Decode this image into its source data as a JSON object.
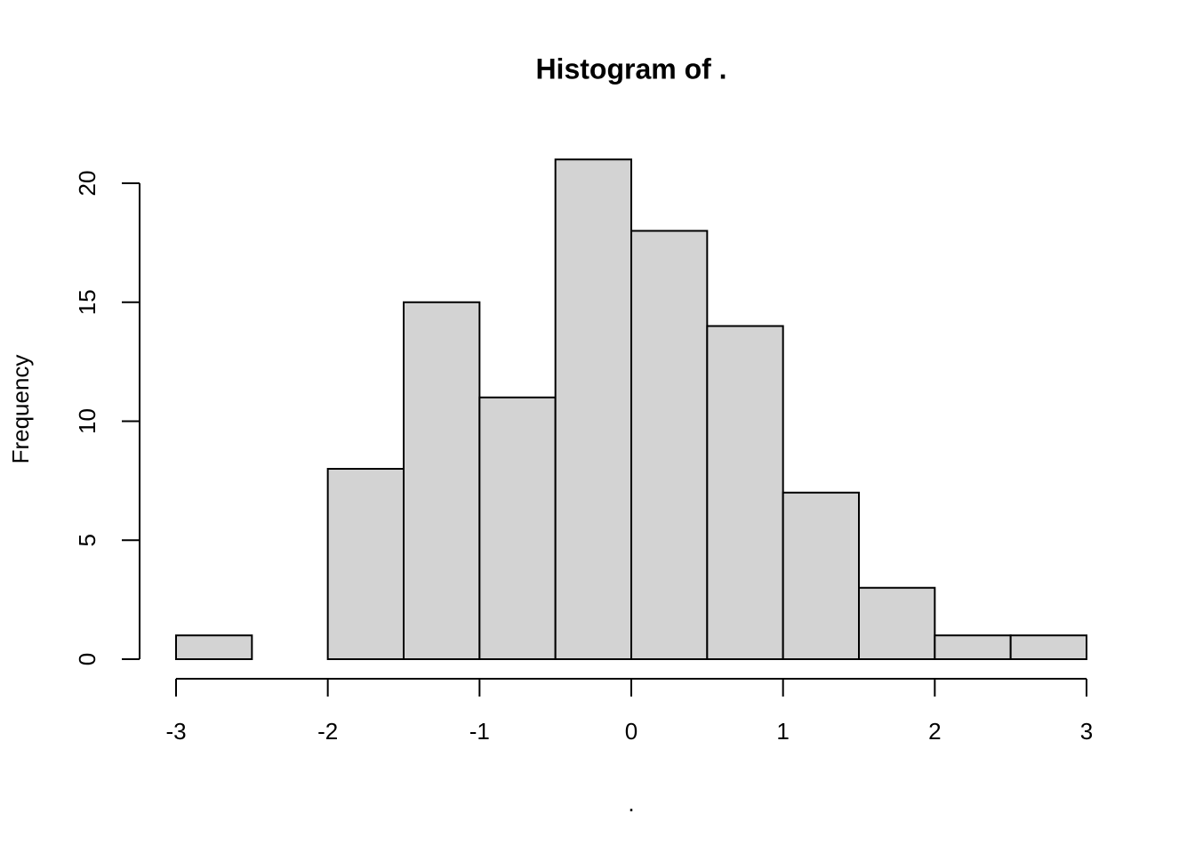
{
  "chart_data": {
    "type": "histogram",
    "title": "Histogram of .",
    "xlabel": ".",
    "ylabel": "Frequency",
    "bins": [
      -3,
      -2.5,
      -2,
      -1.5,
      -1,
      -0.5,
      0,
      0.5,
      1,
      1.5,
      2,
      2.5,
      3
    ],
    "counts": [
      1,
      0,
      8,
      15,
      11,
      21,
      18,
      14,
      7,
      3,
      1,
      1
    ],
    "color": "#d3d3d3",
    "xlim": [
      -3,
      3
    ],
    "ylim": [
      0,
      21
    ],
    "xticks": [
      -3,
      -2,
      -1,
      0,
      1,
      2,
      3
    ],
    "yticks": [
      0,
      5,
      10,
      15,
      20
    ]
  }
}
